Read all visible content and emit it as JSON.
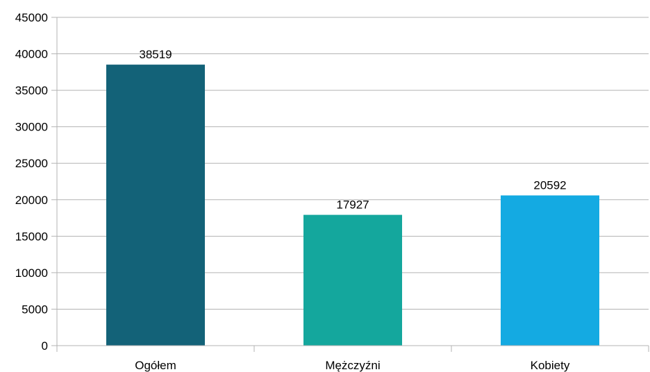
{
  "chart_data": {
    "type": "bar",
    "categories": [
      "Ogółem",
      "Mężczyźni",
      "Kobiety"
    ],
    "values": [
      38519,
      17927,
      20592
    ],
    "data_labels": [
      "38519",
      "17927",
      "20592"
    ],
    "colors": [
      "#136278",
      "#14a79d",
      "#14aae2"
    ],
    "ylim": [
      0,
      45000
    ],
    "yticks": [
      0,
      5000,
      10000,
      15000,
      20000,
      25000,
      30000,
      35000,
      40000,
      45000
    ],
    "title": "",
    "xlabel": "",
    "ylabel": "",
    "grid": true,
    "legend": "none"
  }
}
